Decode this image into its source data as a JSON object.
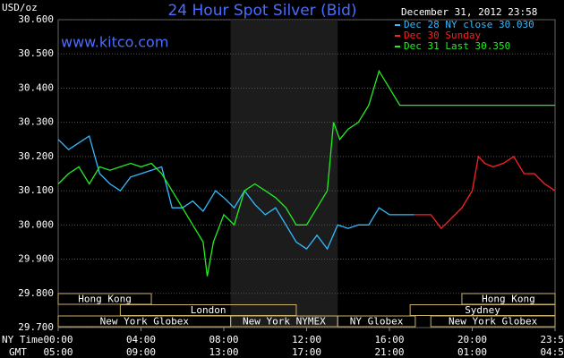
{
  "chart_data": {
    "type": "line",
    "title": "24 Hour Spot Silver (Bid)",
    "site": "www.kitco.com",
    "timestamp": "December 31, 2012 23:58",
    "y_unit": "USD/oz",
    "x_label": "NY Time",
    "x2_label": "GMT",
    "xlim": [
      0,
      24
    ],
    "ylim": [
      29.7,
      30.6
    ],
    "yticks": [
      {
        "value": 29.7,
        "label": "29.700"
      },
      {
        "value": 29.8,
        "label": "29.800"
      },
      {
        "value": 29.9,
        "label": "29.900"
      },
      {
        "value": 30.0,
        "label": "30.000"
      },
      {
        "value": 30.1,
        "label": "30.100"
      },
      {
        "value": 30.2,
        "label": "30.200"
      },
      {
        "value": 30.3,
        "label": "30.300"
      },
      {
        "value": 30.4,
        "label": "30.400"
      },
      {
        "value": 30.5,
        "label": "30.500"
      },
      {
        "value": 30.6,
        "label": "30.600"
      }
    ],
    "xticks": [
      {
        "value": 0,
        "label": "00:00"
      },
      {
        "value": 4,
        "label": "04:00"
      },
      {
        "value": 8,
        "label": "08:00"
      },
      {
        "value": 12,
        "label": "12:00"
      },
      {
        "value": 16,
        "label": "16:00"
      },
      {
        "value": 20,
        "label": "20:00"
      },
      {
        "value": 24,
        "label": "23:59"
      }
    ],
    "x2ticks": [
      {
        "value": 0,
        "label": "05:00"
      },
      {
        "value": 4,
        "label": "09:00"
      },
      {
        "value": 8,
        "label": "13:00"
      },
      {
        "value": 12,
        "label": "17:00"
      },
      {
        "value": 16,
        "label": "21:00"
      },
      {
        "value": 20,
        "label": "01:00"
      },
      {
        "value": 24,
        "label": "04:59"
      }
    ],
    "grid": true,
    "shaded_range": [
      8.33,
      13.5
    ],
    "sessions": [
      [
        {
          "name": "Hong Kong",
          "start": 0,
          "end": 4.5
        },
        {
          "name": "Hong Kong",
          "start": 19.5,
          "end": 24
        }
      ],
      [
        {
          "name": "London",
          "start": 3,
          "end": 11.5
        },
        {
          "name": "Sydney",
          "start": 17,
          "end": 24
        }
      ],
      [
        {
          "name": "New York Globex",
          "start": 0,
          "end": 8.33
        },
        {
          "name": "New York NYMEX",
          "start": 8.33,
          "end": 13.5
        },
        {
          "name": "NY Globex",
          "start": 13.5,
          "end": 17.25
        },
        {
          "name": "New York Globex",
          "start": 18,
          "end": 24
        }
      ]
    ],
    "series": [
      {
        "name": "Dec 28 NY close 30.030",
        "color": "#33bbff",
        "x": [
          0,
          0.5,
          1,
          1.5,
          2,
          2.5,
          3,
          3.5,
          4,
          4.5,
          5,
          5.5,
          6,
          6.5,
          7,
          7.6,
          8,
          8.5,
          9,
          9.5,
          10,
          10.5,
          11,
          11.5,
          12,
          12.5,
          13,
          13.5,
          14,
          14.5,
          15,
          15.5,
          16,
          16.6,
          17.2
        ],
        "values": [
          30.25,
          30.22,
          30.24,
          30.26,
          30.15,
          30.12,
          30.1,
          30.14,
          30.15,
          30.16,
          30.17,
          30.05,
          30.05,
          30.07,
          30.04,
          30.1,
          30.08,
          30.05,
          30.1,
          30.06,
          30.03,
          30.05,
          30.0,
          29.95,
          29.93,
          29.97,
          29.93,
          30.0,
          29.99,
          30.0,
          30.0,
          30.05,
          30.03,
          30.03,
          30.03
        ]
      },
      {
        "name": "Dec 30 Sunday",
        "color": "#ff2020",
        "x": [
          17.2,
          17.5,
          18,
          18.5,
          19,
          19.5,
          20,
          20.3,
          20.6,
          21,
          21.5,
          22,
          22.5,
          23,
          23.5,
          24
        ],
        "values": [
          30.03,
          30.03,
          30.03,
          29.99,
          30.02,
          30.05,
          30.1,
          30.2,
          30.18,
          30.17,
          30.18,
          30.2,
          30.15,
          30.15,
          30.12,
          30.1
        ]
      },
      {
        "name": "Dec 31 Last 30.350",
        "color": "#22ee22",
        "x": [
          0,
          0.5,
          1,
          1.5,
          2,
          2.5,
          3,
          3.5,
          4,
          4.5,
          5,
          5.5,
          6,
          6.5,
          7,
          7.2,
          7.5,
          8,
          8.5,
          9,
          9.5,
          10,
          10.5,
          11,
          11.5,
          12,
          12.5,
          13,
          13.3,
          13.6,
          14,
          14.5,
          15,
          15.5,
          16,
          16.5,
          17,
          18,
          20,
          22,
          24
        ],
        "values": [
          30.12,
          30.15,
          30.17,
          30.12,
          30.17,
          30.16,
          30.17,
          30.18,
          30.17,
          30.18,
          30.15,
          30.1,
          30.05,
          30.0,
          29.95,
          29.85,
          29.95,
          30.03,
          30.0,
          30.1,
          30.12,
          30.1,
          30.08,
          30.05,
          30.0,
          30.0,
          30.05,
          30.1,
          30.3,
          30.25,
          30.28,
          30.3,
          30.35,
          30.45,
          30.4,
          30.35,
          30.35,
          30.35,
          30.35,
          30.35,
          30.35
        ]
      }
    ]
  }
}
